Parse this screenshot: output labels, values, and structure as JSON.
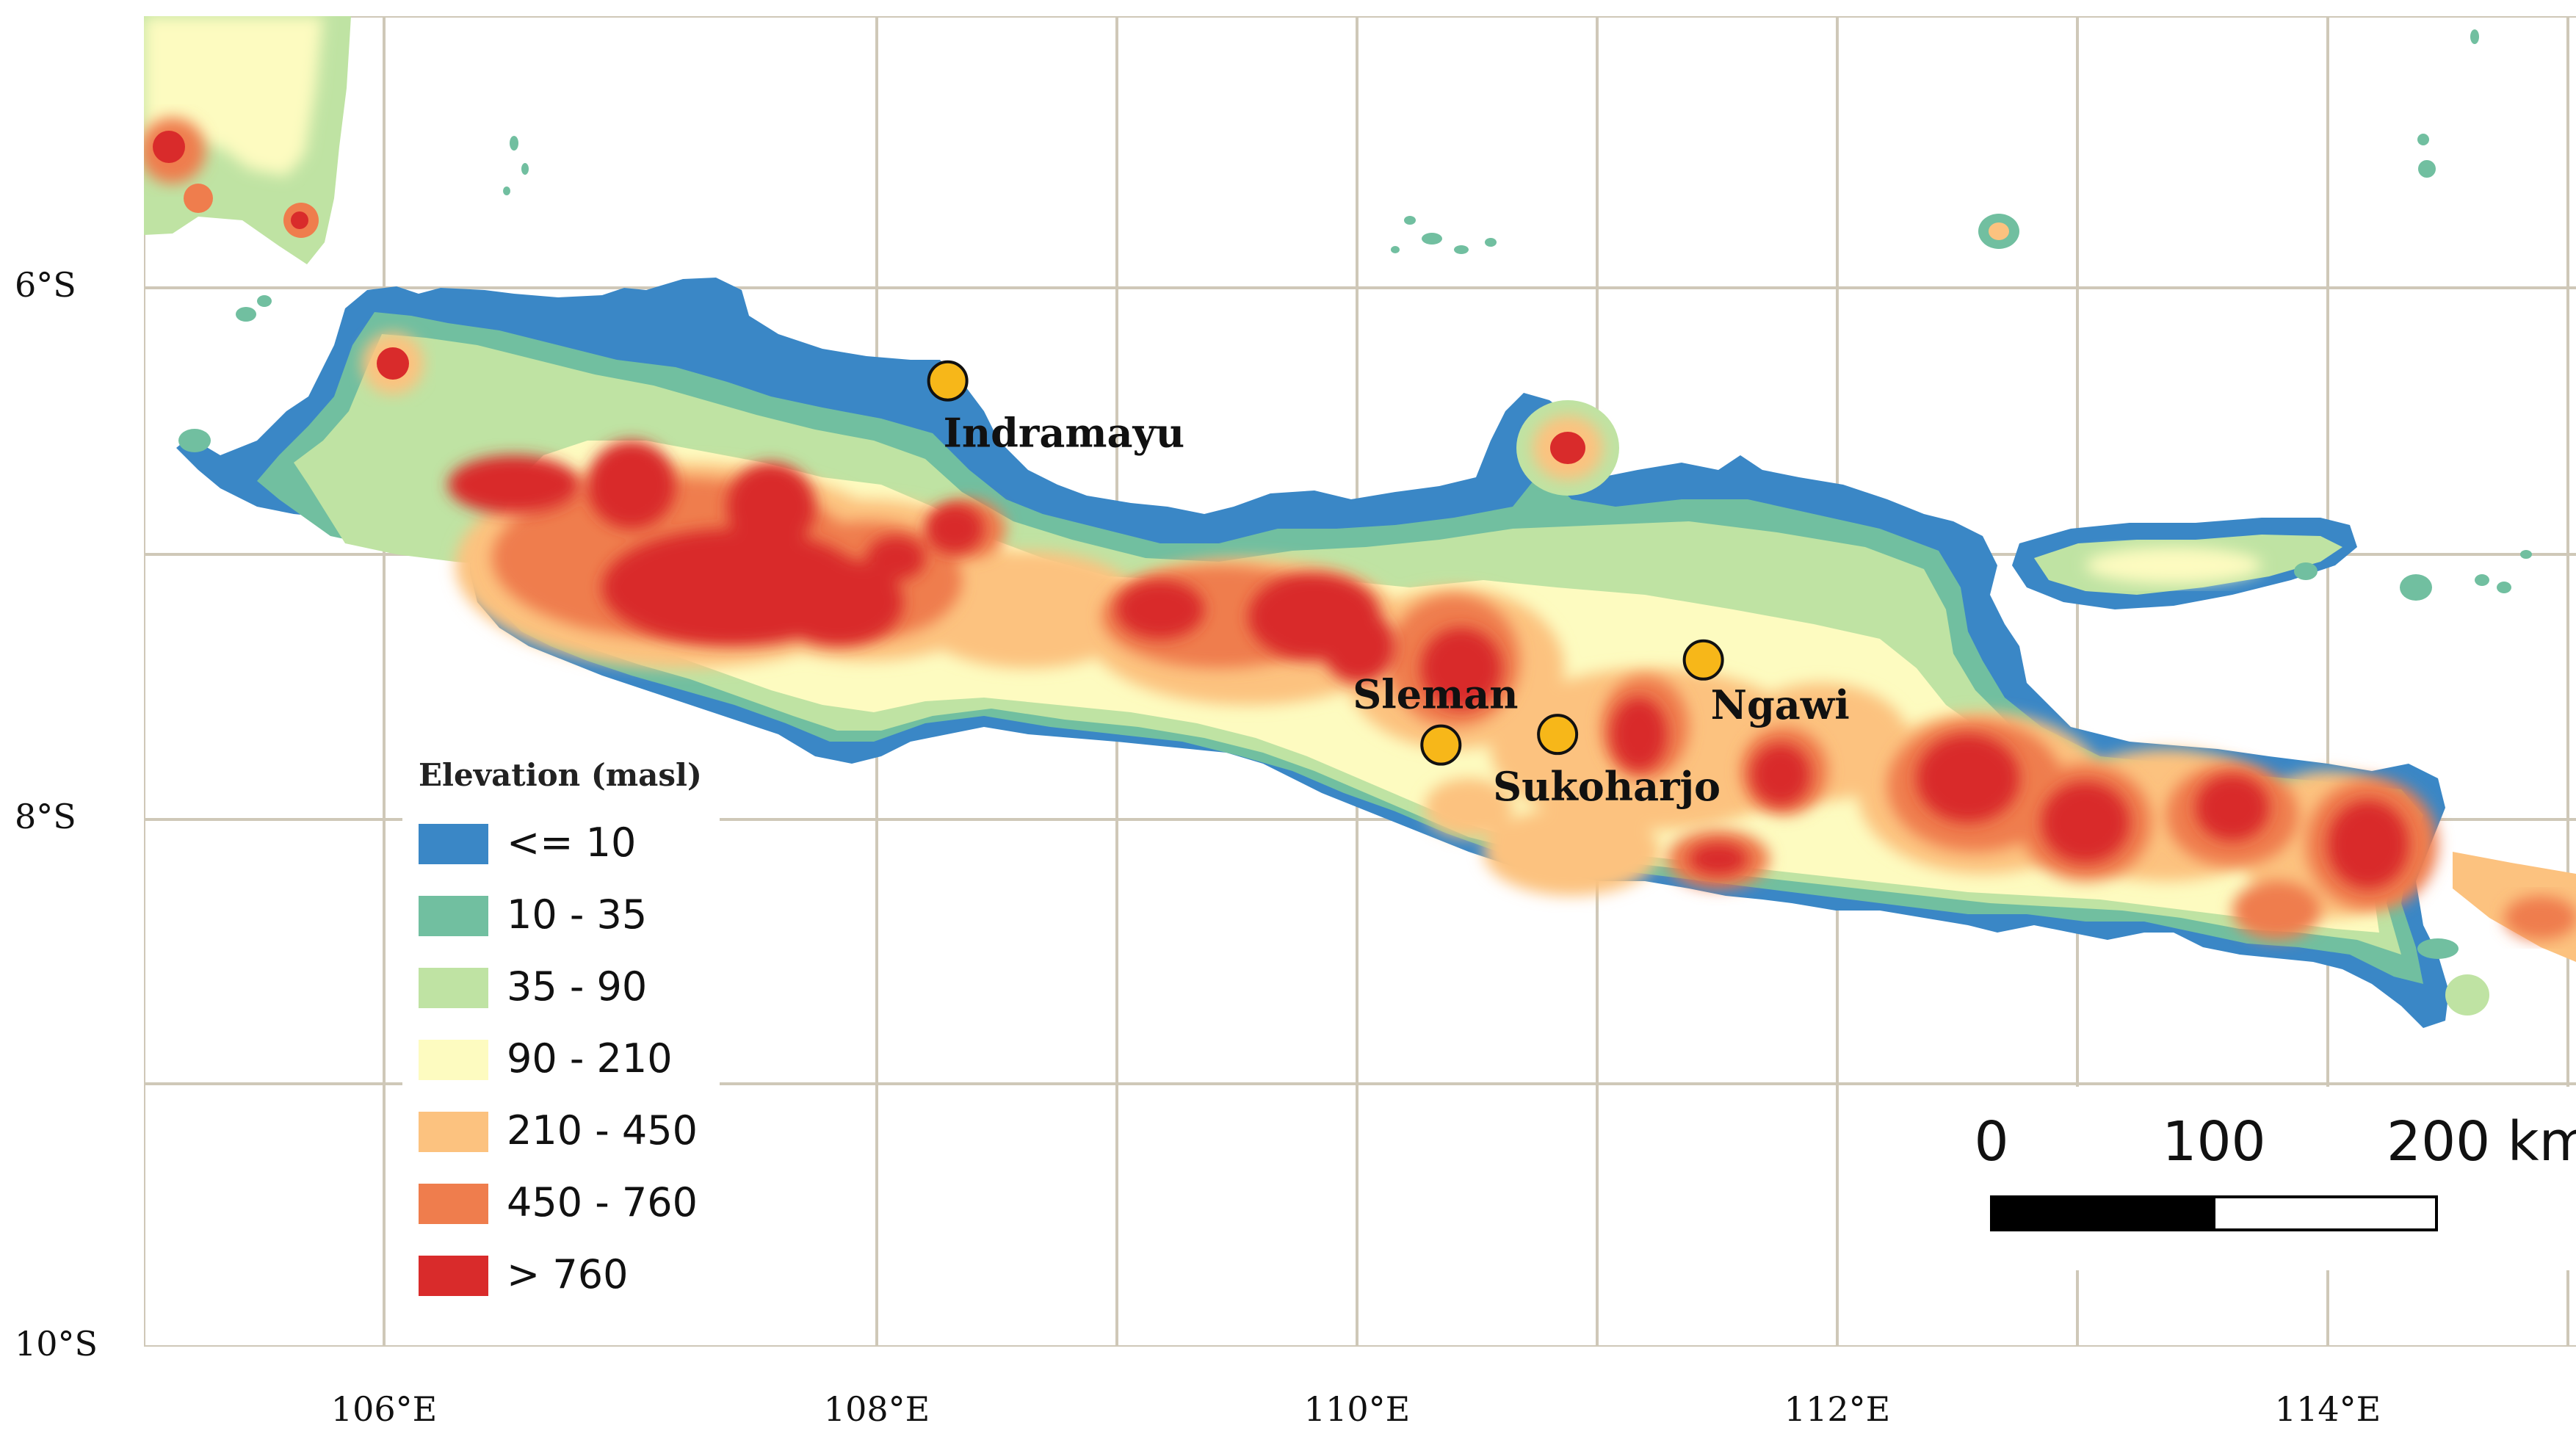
{
  "axes": {
    "lon_labels": [
      "106°E",
      "108°E",
      "110°E",
      "112°E",
      "114°E"
    ],
    "lat_labels": [
      "6°S",
      "8°S",
      "10°S"
    ]
  },
  "legend": {
    "title": "Elevation (masl)",
    "items": [
      {
        "label": "<= 10",
        "color": "#3a87c6"
      },
      {
        "label": "10 - 35",
        "color": "#71bfa0"
      },
      {
        "label": "35 - 90",
        "color": "#bfe3a3"
      },
      {
        "label": "90 - 210",
        "color": "#fdfbc0"
      },
      {
        "label": "210 - 450",
        "color": "#fcc27f"
      },
      {
        "label": "450 - 760",
        "color": "#ef7d4d"
      },
      {
        "label": "> 760",
        "color": "#d92b2b"
      }
    ]
  },
  "sites": [
    {
      "name": "Indramayu",
      "lon": 108.32,
      "lat": -6.35
    },
    {
      "name": "Sleman",
      "lon": 110.35,
      "lat": -7.72
    },
    {
      "name": "Sukoharjo",
      "lon": 110.83,
      "lat": -7.68
    },
    {
      "name": "Ngawi",
      "lon": 111.43,
      "lat": -7.4
    }
  ],
  "scalebar": {
    "labels": [
      "0",
      "100",
      "200 km"
    ]
  },
  "colors": {
    "site_marker": "#f7b719",
    "graticule": "#cfc8b8"
  }
}
